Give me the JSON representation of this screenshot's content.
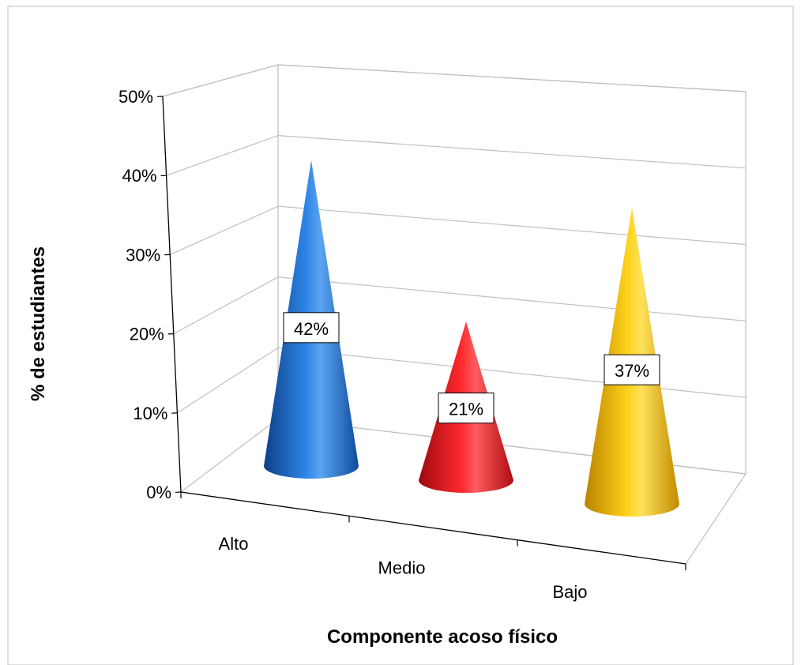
{
  "chart_data": {
    "type": "bar",
    "shape": "cone-3d",
    "categories": [
      "Alto",
      "Medio",
      "Bajo"
    ],
    "values": [
      42,
      21,
      37
    ],
    "data_labels": [
      "42%",
      "21%",
      "37%"
    ],
    "colors": [
      "#1f6fd0",
      "#e8141b",
      "#f2b800"
    ],
    "xlabel": "Componente acoso físico",
    "ylabel": "%  de estudiantes",
    "ylim": [
      0,
      50
    ],
    "yticks": [
      0,
      10,
      20,
      30,
      40,
      50
    ],
    "ytick_labels": [
      "0%",
      "10%",
      "20%",
      "30%",
      "40%",
      "50%"
    ],
    "grid": true,
    "legend": "none"
  }
}
